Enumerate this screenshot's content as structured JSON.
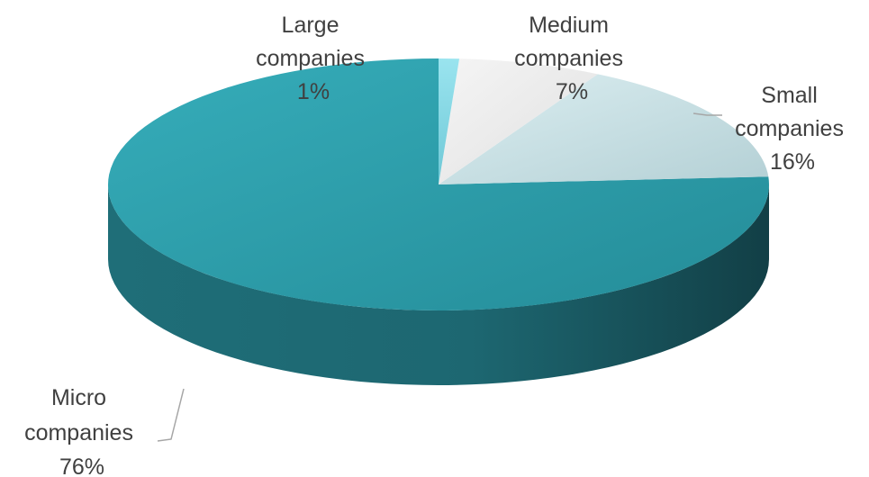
{
  "chart_data": {
    "type": "pie",
    "style": "3d",
    "slices": [
      {
        "name": "Large companies",
        "label_line1": "Large",
        "label_line2": "companies",
        "percent_text": "1%",
        "value": 1,
        "color": "#7ed6e5"
      },
      {
        "name": "Medium companies",
        "label_line1": "Medium",
        "label_line2": "companies",
        "percent_text": "7%",
        "value": 7,
        "color": "#ececec"
      },
      {
        "name": "Small companies",
        "label_line1": "Small",
        "label_line2": "companies",
        "percent_text": "16%",
        "value": 16,
        "color": "#c6dee2"
      },
      {
        "name": "Micro companies",
        "label_line1": "Micro",
        "label_line2": "companies",
        "percent_text": "76%",
        "value": 76,
        "color": "#2a9aa6"
      }
    ]
  }
}
